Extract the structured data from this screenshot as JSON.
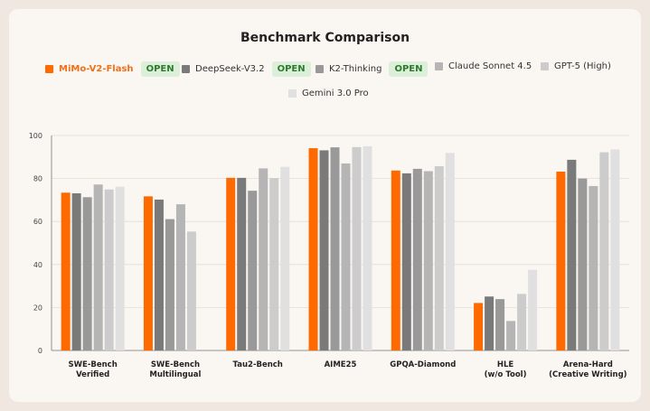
{
  "chart_data": {
    "type": "bar",
    "title": "Benchmark Comparison",
    "categories": [
      [
        "SWE-Bench",
        "Verified"
      ],
      [
        "SWE-Bench",
        "Multilingual"
      ],
      [
        "Tau2-Bench"
      ],
      [
        "AIME25"
      ],
      [
        "GPQA-Diamond"
      ],
      [
        "HLE",
        "(w/o Tool)"
      ],
      [
        "Arena-Hard",
        "(Creative Writing)"
      ]
    ],
    "ylim": [
      0,
      100
    ],
    "yticks": [
      0,
      20,
      40,
      60,
      80,
      100
    ],
    "grid": true,
    "legend_position": "top",
    "series": [
      {
        "name": "MiMo-V2-Flash",
        "badge": "OPEN",
        "color": "#ff6a00",
        "values": [
          73.4,
          71.7,
          80.3,
          94.1,
          83.7,
          22.1,
          83.2
        ]
      },
      {
        "name": "DeepSeek-V3.2",
        "badge": "OPEN",
        "color": "#7a7a7a",
        "values": [
          73.1,
          70.2,
          80.3,
          93.1,
          82.4,
          25.1,
          88.7
        ]
      },
      {
        "name": "K2-Thinking",
        "badge": "OPEN",
        "color": "#999999",
        "values": [
          71.3,
          61.1,
          74.3,
          94.5,
          84.5,
          23.9,
          80.0
        ]
      },
      {
        "name": "Claude Sonnet 4.5",
        "badge": "",
        "color": "#b5b5b5",
        "values": [
          77.2,
          68.0,
          84.7,
          87.0,
          83.4,
          13.7,
          76.5
        ]
      },
      {
        "name": "GPT-5 (High)",
        "badge": "",
        "color": "#cccccc",
        "values": [
          74.9,
          55.3,
          80.2,
          94.6,
          85.7,
          26.3,
          92.2
        ]
      },
      {
        "name": "Gemini 3.0 Pro",
        "badge": "",
        "color": "#e0e0e0",
        "values": [
          76.2,
          0,
          85.4,
          95.0,
          91.9,
          37.5,
          93.5
        ]
      }
    ]
  }
}
